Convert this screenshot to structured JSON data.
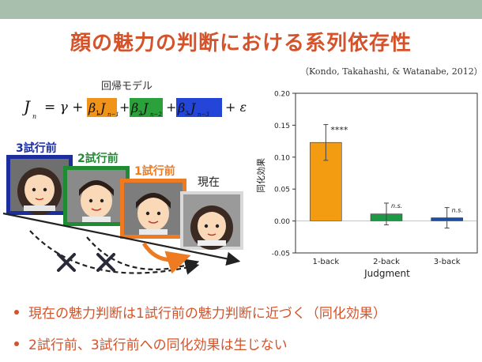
{
  "slide": {
    "title": "顔の魅力の判断における系列依存性",
    "citation": "（Kondo, Takahashi, & Watanabe, 2012）",
    "model_label": "回帰モデル",
    "equation": {
      "lhs": "J",
      "lhs_sub": "n",
      "eq_part": "= γ +",
      "terms": [
        {
          "coef": "β",
          "coef_sub": "1",
          "var": "J",
          "var_sub": "n−1",
          "color": "#f0931a"
        },
        {
          "coef": "β",
          "coef_sub": "2",
          "var": "J",
          "var_sub": "n−2",
          "color": "#2aa13a"
        },
        {
          "coef": "β",
          "coef_sub": "3",
          "var": "J",
          "var_sub": "n−3",
          "color": "#2346d8"
        }
      ],
      "tail": "+ ε"
    },
    "trials": [
      {
        "label": "3試行前",
        "color": "#1c2e9c",
        "label_color": "#1c2e9c"
      },
      {
        "label": "2試行前",
        "color": "#1f8c33",
        "label_color": "#1f8c33"
      },
      {
        "label": "1試行前",
        "color": "#ee7a22",
        "label_color": "#ee7a22"
      },
      {
        "label": "現在",
        "color": "#cccccc",
        "label_color": "#222222"
      }
    ],
    "bullets": [
      "現在の魅力判断は1試行前の魅力判断に近づく（同化効果）",
      "2試行前、3試行前への同化効果は生じない"
    ]
  },
  "chart_data": {
    "type": "bar",
    "categories": [
      "1-back",
      "2-back",
      "3-back"
    ],
    "values": [
      0.123,
      0.011,
      0.005
    ],
    "errors": [
      0.028,
      0.017,
      0.016
    ],
    "bar_colors": [
      "#f39c12",
      "#1e9a46",
      "#1f4e9c"
    ],
    "annotations": [
      "****",
      "n.s.",
      "n.s."
    ],
    "xlabel": "Judgment",
    "ylabel": "同化効果",
    "ylim": [
      -0.05,
      0.2
    ],
    "yticks": [
      "-0.05",
      "0.00",
      "0.05",
      "0.10",
      "0.15",
      "0.20"
    ],
    "ytick_values": [
      -0.05,
      0,
      0.05,
      0.1,
      0.15,
      0.2
    ]
  }
}
